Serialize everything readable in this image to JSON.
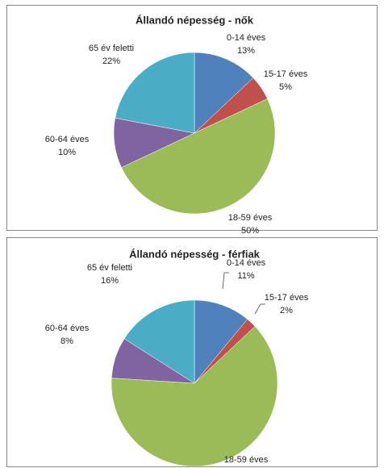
{
  "chart_data": [
    {
      "type": "pie",
      "title": "Állandó népesség - nők",
      "categories": [
        "0-14 éves",
        "15-17 éves",
        "18-59 éves",
        "60-64 éves",
        "65 év feletti"
      ],
      "values": [
        13,
        5,
        50,
        10,
        22
      ],
      "value_labels": [
        "13%",
        "5%",
        "50%",
        "10%",
        "22%"
      ],
      "colors": [
        "#4f81bd",
        "#c0504d",
        "#9bbb59",
        "#8064a2",
        "#4bacc6"
      ]
    },
    {
      "type": "pie",
      "title": "Állandó népesség - férfiak",
      "categories": [
        "0-14 éves",
        "15-17 éves",
        "18-59 éves",
        "60-64 éves",
        "65 év feletti"
      ],
      "values": [
        11,
        2,
        63,
        8,
        16
      ],
      "value_labels": [
        "11%",
        "2%",
        null,
        "8%",
        "16%"
      ],
      "colors": [
        "#4f81bd",
        "#c0504d",
        "#9bbb59",
        "#8064a2",
        "#4bacc6"
      ]
    }
  ]
}
